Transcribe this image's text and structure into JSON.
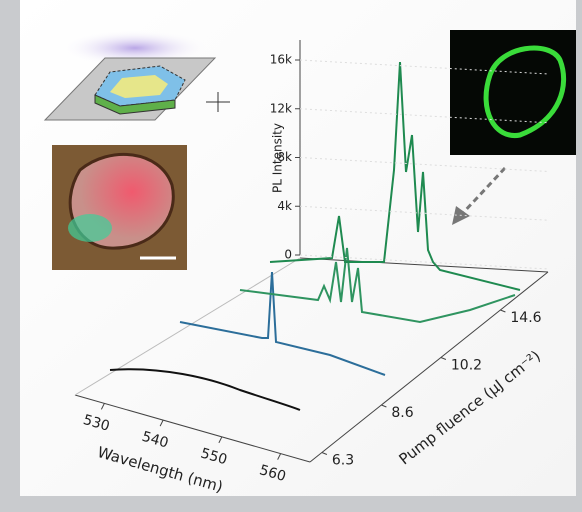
{
  "figure": {
    "y_axis": {
      "title": "PL Intensity",
      "ticks": [
        0,
        {
          "value": 4000,
          "label": "4k"
        },
        {
          "value": 8000,
          "label": "8k"
        },
        {
          "value": 12000,
          "label": "12k"
        },
        {
          "value": 16000,
          "label": "16k"
        }
      ],
      "lim": [
        0,
        16000
      ]
    },
    "x_axis": {
      "title": "Wavelength (nm)",
      "ticks": [
        530,
        540,
        550,
        560
      ],
      "lim": [
        525,
        565
      ]
    },
    "z_axis": {
      "title": "Pump fluence (μJ cm⁻²)",
      "ticks": [
        6.3,
        8.6,
        10.2,
        14.6
      ]
    }
  }
}
